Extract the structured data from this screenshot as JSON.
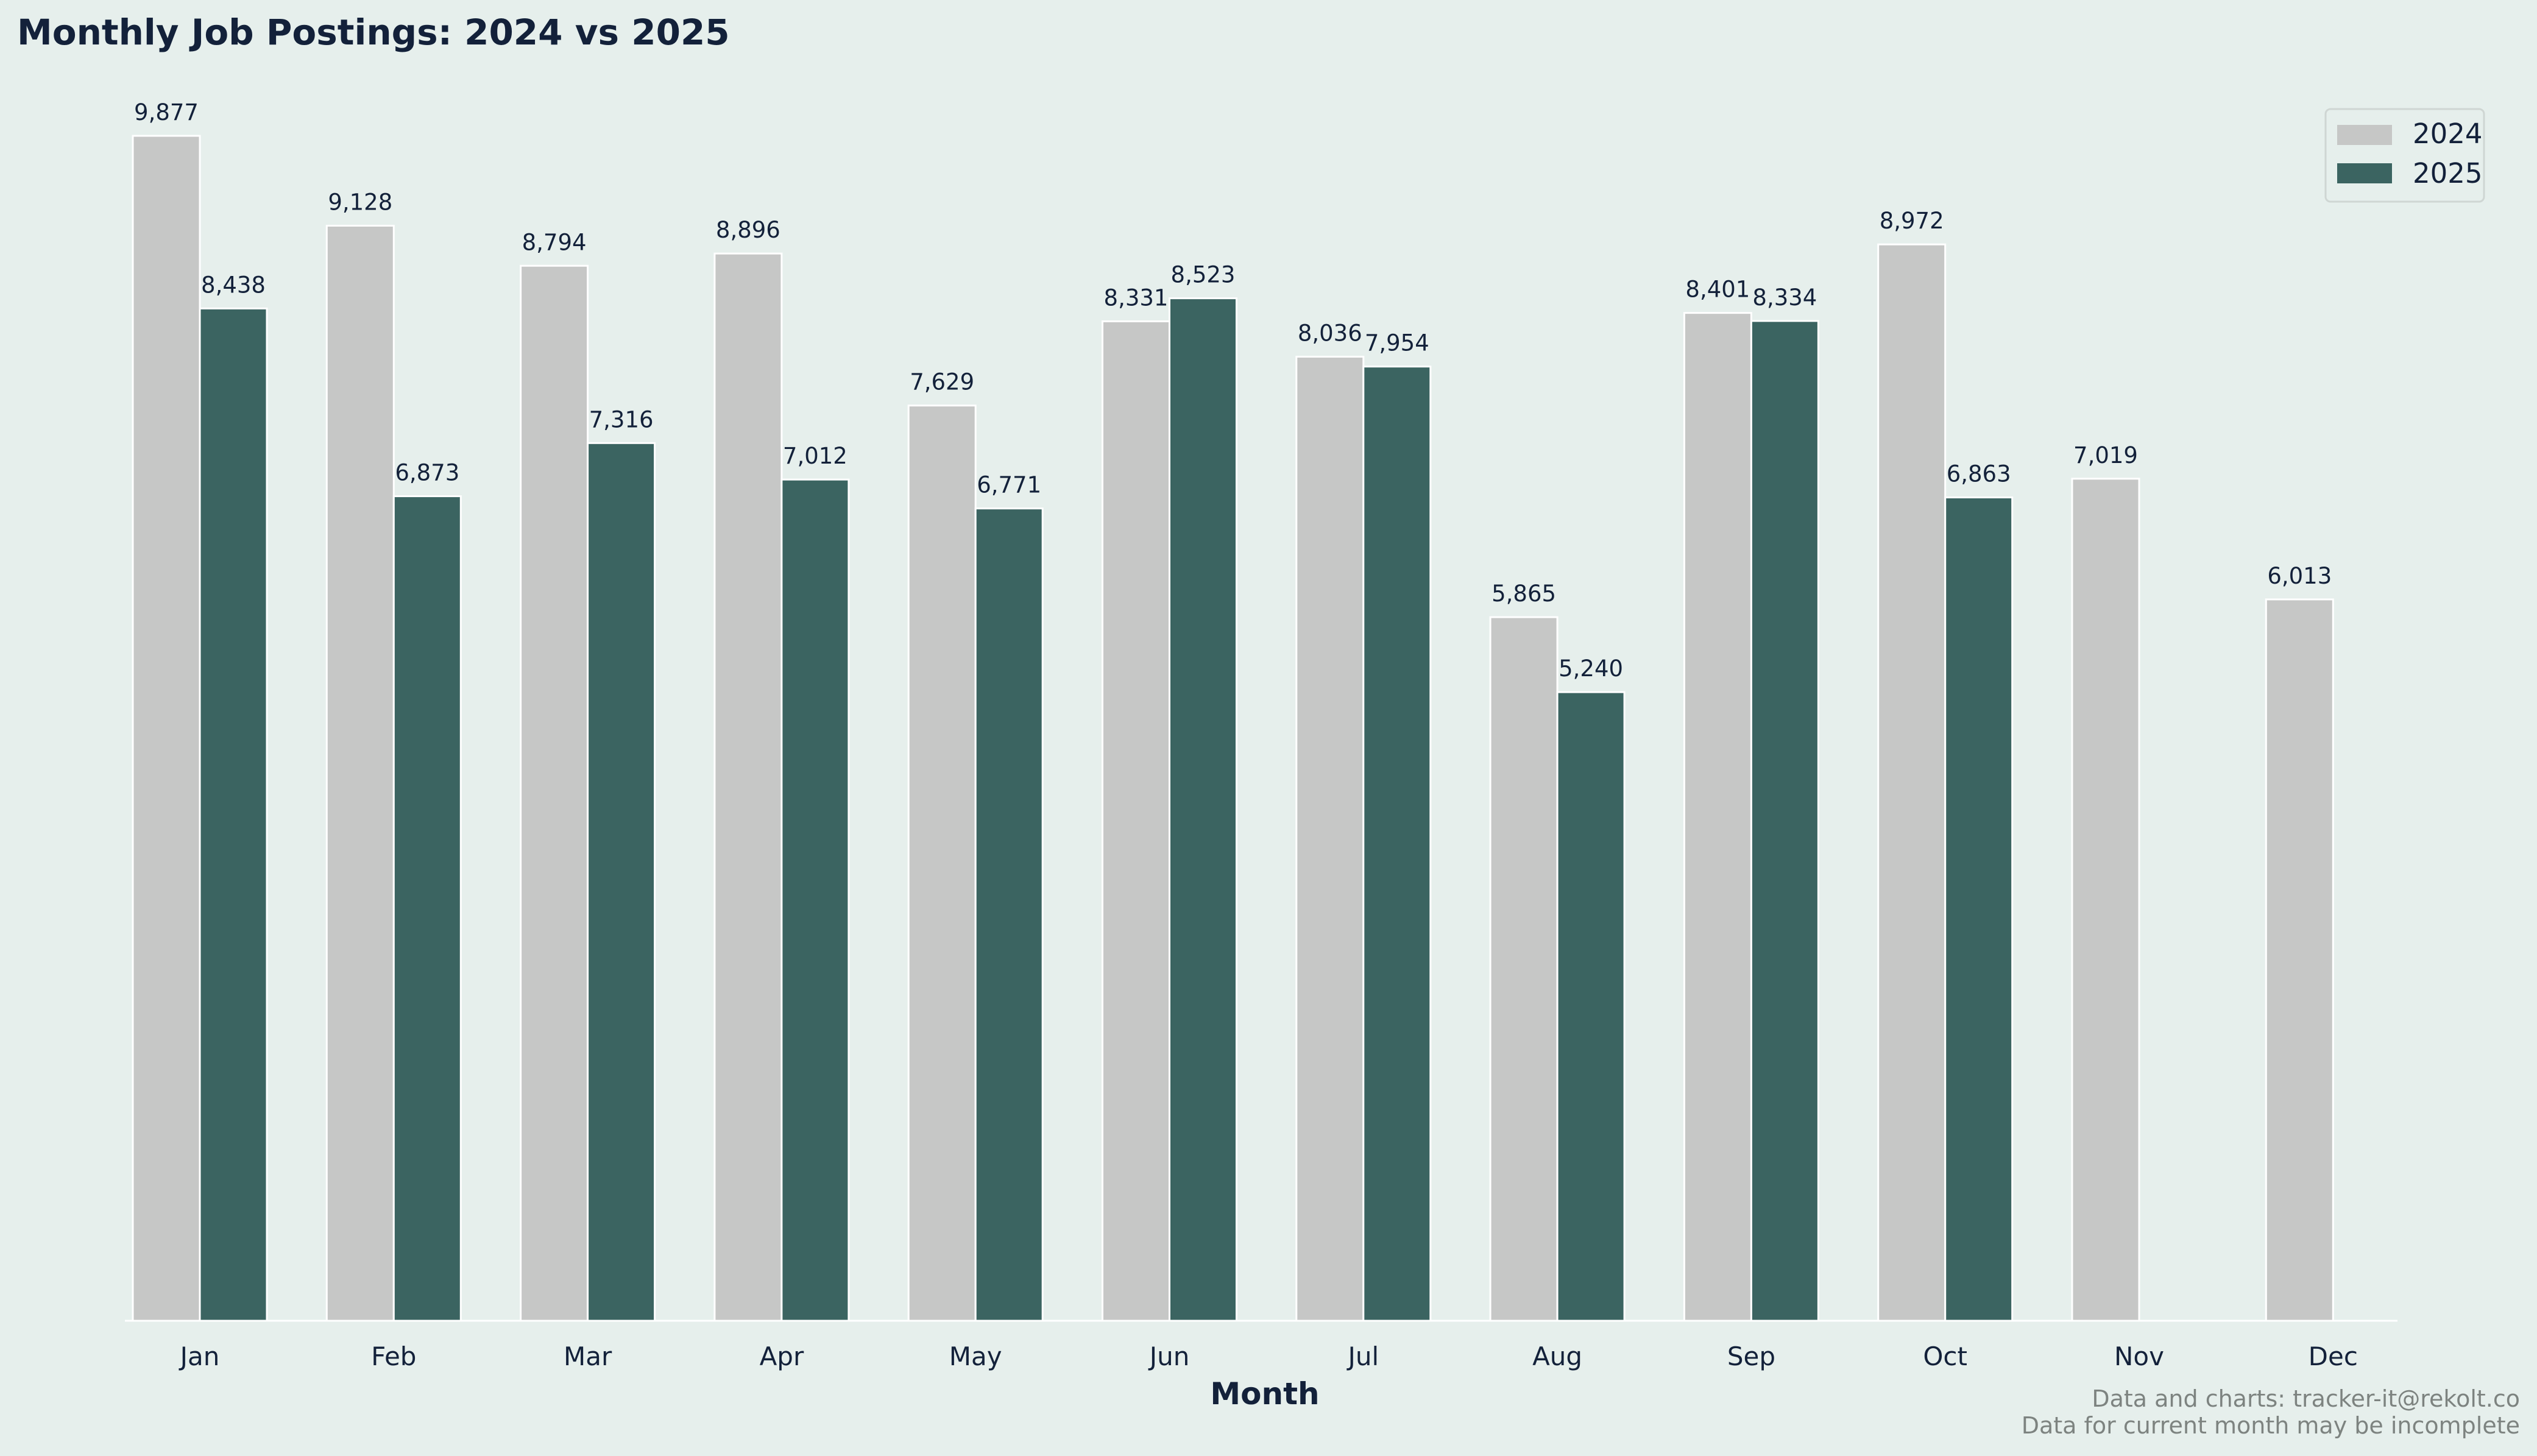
{
  "chart_data": {
    "type": "bar",
    "title": "Monthly Job Postings: 2024 vs 2025",
    "xlabel": "Month",
    "ylabel": "",
    "ylim": [
      0,
      10400
    ],
    "grid": false,
    "legend_position": "top-right",
    "categories": [
      "Jan",
      "Feb",
      "Mar",
      "Apr",
      "May",
      "Jun",
      "Jul",
      "Aug",
      "Sep",
      "Oct",
      "Nov",
      "Dec"
    ],
    "series": [
      {
        "name": "2024",
        "color": "#c6c7c6",
        "values": [
          9877,
          9128,
          8794,
          8896,
          7629,
          8331,
          8036,
          5865,
          8401,
          8972,
          7019,
          6013
        ],
        "labels": [
          "9,877",
          "9,128",
          "8,794",
          "8,896",
          "7,629",
          "8,331",
          "8,036",
          "5,865",
          "8,401",
          "8,972",
          "7,019",
          "6,013"
        ]
      },
      {
        "name": "2025",
        "color": "#3b6461",
        "values": [
          8438,
          6873,
          7316,
          7012,
          6771,
          8523,
          7954,
          5240,
          8334,
          6863,
          0,
          0
        ],
        "labels": [
          "8,438",
          "6,873",
          "7,316",
          "7,012",
          "6,771",
          "8,523",
          "7,954",
          "5,240",
          "8,334",
          "6,863",
          "",
          ""
        ]
      }
    ],
    "footer": {
      "line1": "Data and charts: tracker-it@rekolt.co",
      "line2": "Data for current month may be incomplete"
    }
  }
}
